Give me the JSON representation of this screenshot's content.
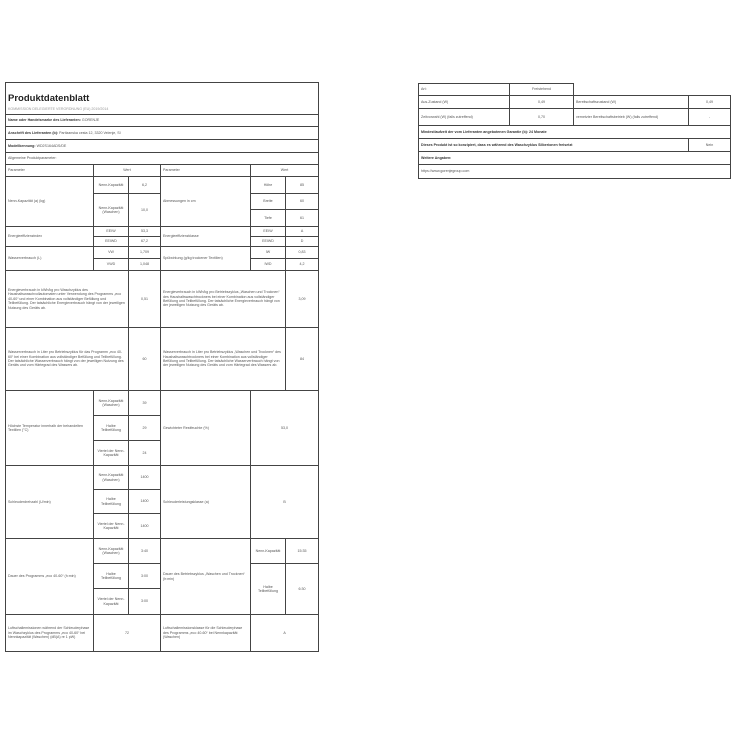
{
  "title": "Produktdatenblatt",
  "subtitle": "KOMMISSION DELEGIERTE VERORDNUNG (EU) 2019/2014",
  "supplier_name": {
    "label": "Name oder Handelsmarke des Lieferanten:",
    "value": "GORENJE"
  },
  "supplier_address": {
    "label": "Anschrift des Lieferanten (b):",
    "value": "Partizanska cesta 12, 3320 Velenje, SI"
  },
  "model": {
    "label": "Modellkennung:",
    "value": "WD2S164ADS/DE"
  },
  "general": "Allgemeine Produktparameter:",
  "header": {
    "param": "Parameter",
    "value": "Wert",
    "param2": "Parameter",
    "value2": "Wert"
  },
  "rows": {
    "capacity": {
      "label": "Nenn-Kapazität (a) (kg)",
      "sub": [
        "Nenn-Kapazität",
        "Nenn-Kapazität (Waschen)"
      ],
      "values": [
        "6,2",
        "10,0"
      ]
    },
    "dimensions": {
      "label": "Abmessungen in cm",
      "sub": [
        "Höhe",
        "Breite",
        "Tiefe"
      ],
      "values": [
        "85",
        "60",
        "61"
      ]
    },
    "eei": {
      "label": "Energieeffizienzindex",
      "sub": [
        "EEIW",
        "EEIWD"
      ],
      "values": [
        "53,3",
        "67,2"
      ]
    },
    "eclass": {
      "label": "Energieeffizienzklasse",
      "sub": [
        "EEIW",
        "EEIWD"
      ],
      "values": [
        "A",
        "D"
      ]
    },
    "water": {
      "label": "Wasserverbrauch (L)",
      "sub": [
        "VW",
        "VWD"
      ],
      "values": [
        "1,709",
        "1,048"
      ]
    },
    "rinse": {
      "label": "Spülwirkung (g/kg trockener Textilien)",
      "sub": [
        "IW",
        "IWD"
      ],
      "values": [
        "0,83",
        "4,2"
      ]
    },
    "energy_w": {
      "label": "Energieverbrauch in kWh/kg pro Waschzyklus des Haushaltswaschvollautomaten unter Verwendung des Programms „eco 40-60“ und einer Kombination aus vollständiger Befüllung und Teilbefüllung. Der tatsächliche Energieverbrauch hängt von der jeweiligen Nutzung des Geräts ab.",
      "value": "0,51"
    },
    "energy_wd": {
      "label": "Energieverbrauch in kWh/kg pro Betriebszyklus „Waschen und Trocknen“ des Haushaltswaschtrockners bei einer Kombination aus vollständiger Befüllung und Teilbefüllung. Der tatsächliche Energieverbrauch hängt von der jeweiligen Nutzung des Geräts ab.",
      "value": "3,09"
    },
    "water_w": {
      "label": "Wasserverbrauch in Liter pro Betriebszyklus für das Programm „eco 40-60“ bei einer Kombination aus vollständiger Befüllung und Teilbefüllung. Der tatsächliche Wasserverbrauch hängt von der jeweiligen Nutzung des Geräts und vom Härtegrad des Wassers ab.",
      "value": "60"
    },
    "water_wd": {
      "label": "Wasserverbrauch in Liter pro Betriebszyklus „Waschen und Trocknen“ des Haushaltswaschtrockners bei einer Kombination aus vollständiger Befüllung und Teilbefüllung. Der tatsächliche Wasserverbrauch hängt von der jeweiligen Nutzung des Geräts und vom Härtegrad des Wassers ab.",
      "value": "84"
    },
    "temp": {
      "label": "Höchste Temperatur innerhalb der behandelten Textilien (°C)",
      "sub": [
        "Nenn-Kapazität (Waschen)",
        "Halbe Teilbefüllung",
        "Viertel der Nenn-Kapazität"
      ],
      "values": [
        "39",
        "29",
        "24"
      ]
    },
    "moisture": {
      "label": "Gewichteter Restfeuchte (%)",
      "value": "53,0"
    },
    "spin": {
      "label": "Schleuderdrehzahl (U/min)",
      "sub": [
        "Nenn-Kapazität (Waschen)",
        "Halbe Teilbefüllung",
        "Viertel der Nenn-Kapazität"
      ],
      "values": [
        "1400",
        "1400",
        "1400"
      ]
    },
    "spin_class": {
      "label": "Schleuderleistungsklasse (a)",
      "value": "B"
    },
    "duration": {
      "label": "Dauer des Programms „eco 40-60“ (h:min)",
      "sub": [
        "Nenn-Kapazität (Waschen)",
        "Halbe Teilbefüllung",
        "Viertel der Nenn-Kapazität"
      ],
      "values": [
        "3:40",
        "3:00",
        "3:00"
      ]
    },
    "duration_wd": {
      "label": "Dauer des Betriebszyklus „Waschen und Trocknen“ (h:min)",
      "sub": [
        "Nenn-Kapazität",
        "Halbe Teilbefüllung"
      ],
      "values": [
        "15:35",
        "6:30"
      ]
    },
    "noise": {
      "label": "Luftschallemissionen während der Schleuderphase im Waschzyklus des Programms „eco 40-60“ bei Nennkapazität (Waschen) (dB(A) re 1 pW)",
      "value": "72"
    },
    "noise_class": {
      "label": "Luftschallemissionsklasse für die Schleuderphase des Programms „eco 40-60“ bei Nennkapazität (Waschen)",
      "value": "A"
    }
  },
  "right": {
    "type": {
      "label": "Art:",
      "value": "Freistehend"
    },
    "off": {
      "label": "Aus-Zustand (W)",
      "value": "0,49",
      "label2": "Bereitschaftszustand (W)",
      "value2": "0,49"
    },
    "delay": {
      "label": "Zeitvorwahl (W) (falls zutreffend)",
      "value": "0,70",
      "label2": "vernetzter Bereitschaftsbetrieb (W) (falls zutreffend)",
      "value2": "-"
    },
    "warranty": "Mindestlaufzeit der vom Lieferanten angebotenen Garantie (b): 24 Monate",
    "silver": {
      "label": "Dieses Produkt ist so konzipiert, dass es während des Waschzyklus Silberionen freisetzt",
      "value": "Nein"
    },
    "more": "Weitere Angaben:",
    "url": "https://www.gorenjegroup.com"
  }
}
